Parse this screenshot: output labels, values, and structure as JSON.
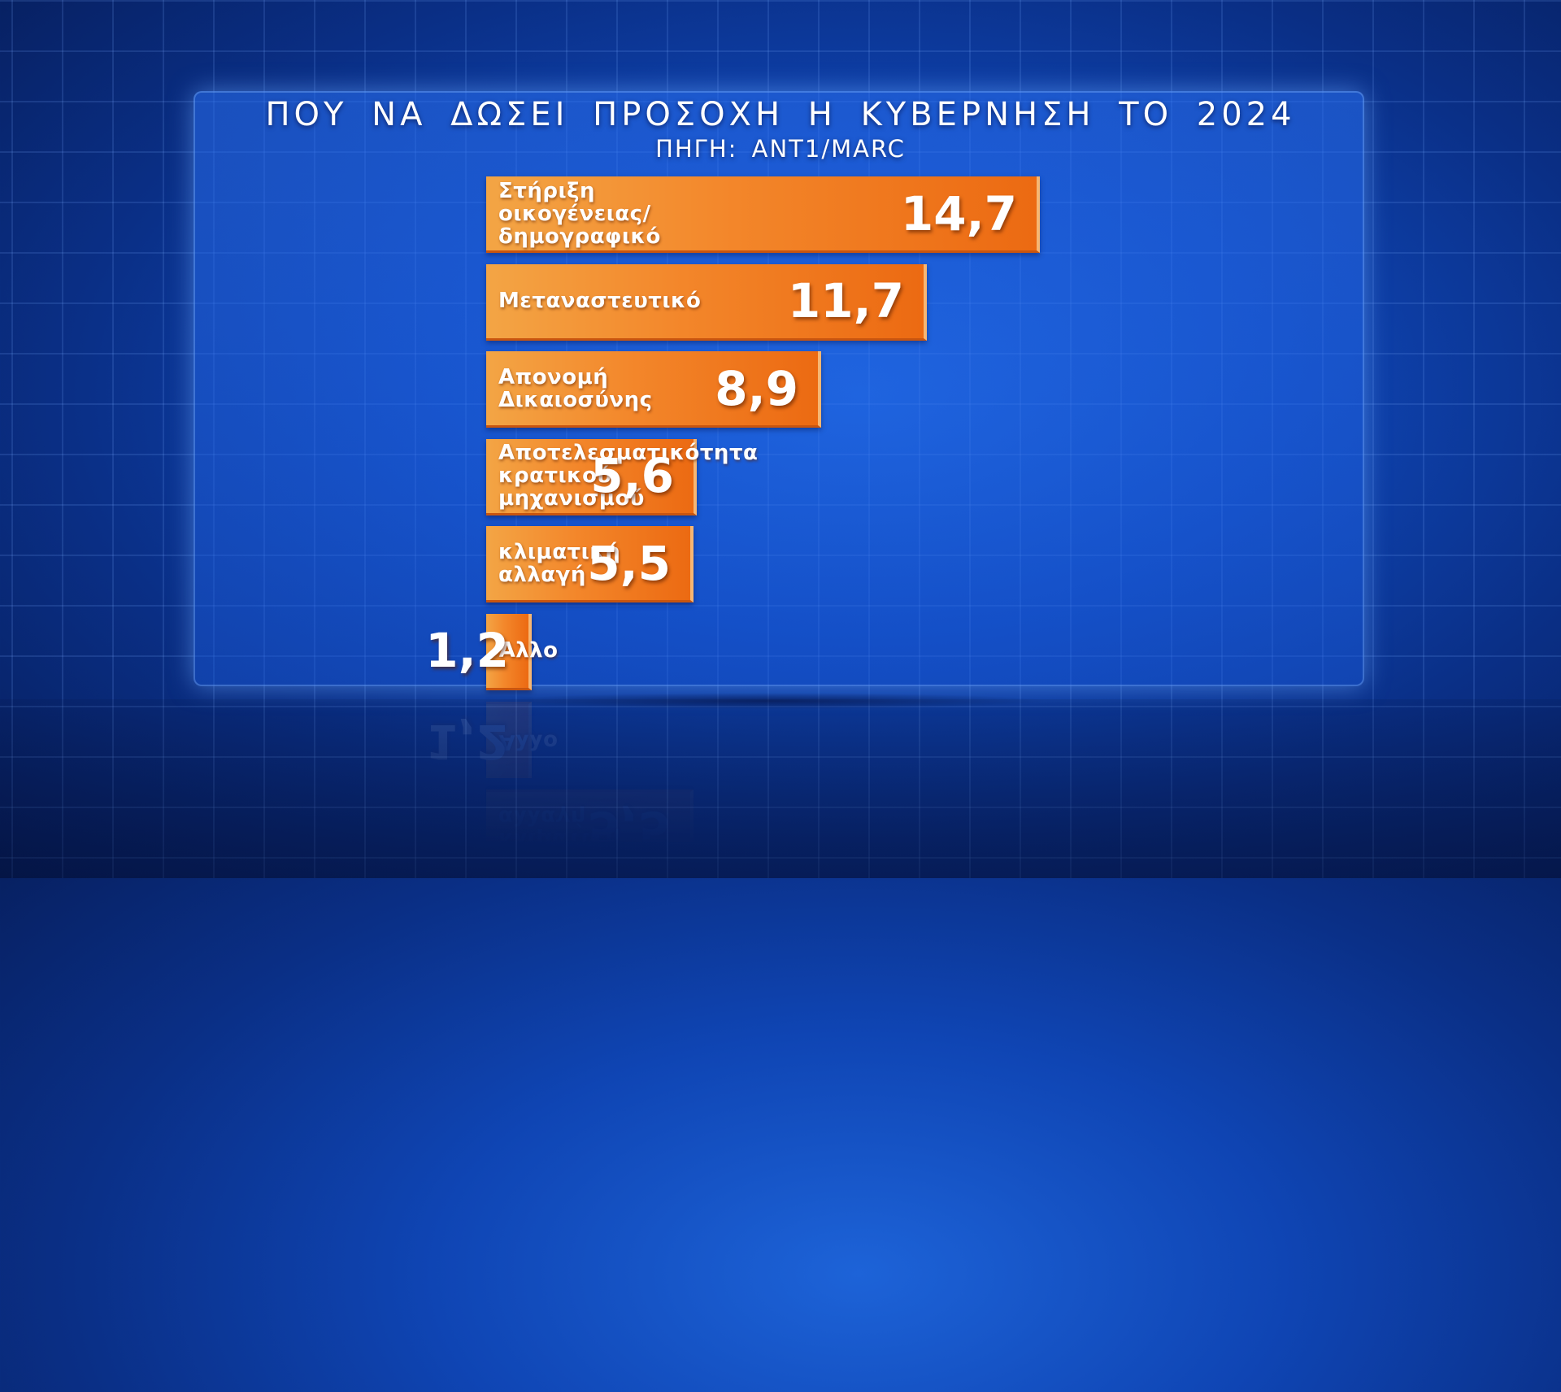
{
  "chart_data": {
    "type": "bar",
    "orientation": "horizontal",
    "title": "ΠΟΥ ΝΑ ΔΩΣΕΙ ΠΡΟΣΟΧΗ Η ΚΥΒΕΡΝΗΣΗ ΤΟ 2024",
    "subtitle": "ΠΗΓΗ: ANT1/MARC",
    "categories": [
      "Στήριξη\nοικογένειας/\nδημογραφικό",
      "Μεταναστευτικό",
      "Απονομή\nΔικαιοσύνης",
      "Αποτελεσματικότητα\nκρατικού\nμηχανισμού",
      "κλιματική\nαλλαγή",
      "Άλλο"
    ],
    "values": [
      14.7,
      11.7,
      8.9,
      5.6,
      5.5,
      1.2
    ],
    "value_labels": [
      "14,7",
      "11,7",
      "8,9",
      "5,6",
      "5,5",
      "1,2"
    ],
    "bar_color": "#f3862a",
    "background_color": "#0f45b4"
  }
}
